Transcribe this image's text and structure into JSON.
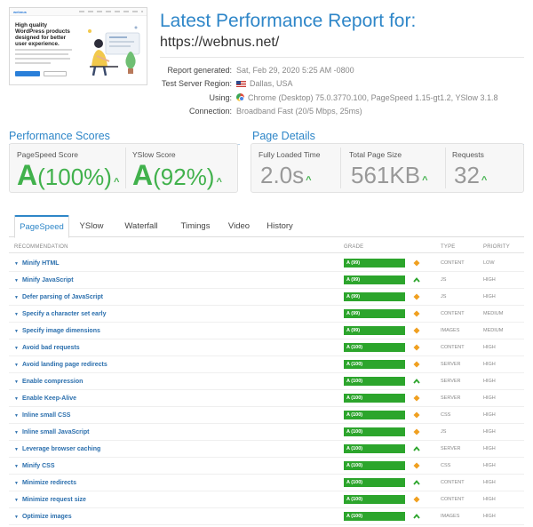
{
  "header": {
    "thumbnail": {
      "logo": "webnus",
      "headline": "High quality WordPress products designed for better user experience."
    },
    "title": "Latest Performance Report for:",
    "url": "https://webnus.net/",
    "info": [
      {
        "label": "Report generated:",
        "value": "Sat, Feb 29, 2020 5:25 AM -0800"
      },
      {
        "label": "Test Server Region:",
        "value": "Dallas, USA",
        "icon": "us-flag-icon"
      },
      {
        "label": "Using:",
        "value": "Chrome (Desktop) 75.0.3770.100, PageSpeed 1.15-gt1.2, YSlow 3.1.8",
        "icon": "chrome-icon"
      },
      {
        "label": "Connection:",
        "value": "Broadband Fast (20/5 Mbps, 25ms)"
      }
    ]
  },
  "performance_scores": {
    "title": "Performance Scores",
    "pagespeed": {
      "label": "PageSpeed Score",
      "grade": "A",
      "percent": "(100%)"
    },
    "yslow": {
      "label": "YSlow Score",
      "grade": "A",
      "percent": "(92%)"
    }
  },
  "page_details": {
    "title": "Page Details",
    "fully_loaded": {
      "label": "Fully Loaded Time",
      "value": "2.0s"
    },
    "page_size": {
      "label": "Total Page Size",
      "value": "561KB"
    },
    "requests": {
      "label": "Requests",
      "value": "32"
    }
  },
  "tabs": [
    "PageSpeed",
    "YSlow",
    "Waterfall",
    "Timings",
    "Video",
    "History"
  ],
  "active_tab": "PageSpeed",
  "table": {
    "headers": {
      "recommendation": "RECOMMENDATION",
      "grade": "GRADE",
      "type": "TYPE",
      "priority": "PRIORITY"
    },
    "rows": [
      {
        "name": "Minify HTML",
        "grade": "A (99)",
        "score": 99,
        "trend": "diamond",
        "type": "CONTENT",
        "priority": "LOW"
      },
      {
        "name": "Minify JavaScript",
        "grade": "A (99)",
        "score": 99,
        "trend": "up",
        "type": "JS",
        "priority": "HIGH"
      },
      {
        "name": "Defer parsing of JavaScript",
        "grade": "A (99)",
        "score": 99,
        "trend": "diamond",
        "type": "JS",
        "priority": "HIGH"
      },
      {
        "name": "Specify a character set early",
        "grade": "A (99)",
        "score": 99,
        "trend": "diamond",
        "type": "CONTENT",
        "priority": "MEDIUM"
      },
      {
        "name": "Specify image dimensions",
        "grade": "A (99)",
        "score": 99,
        "trend": "diamond",
        "type": "IMAGES",
        "priority": "MEDIUM"
      },
      {
        "name": "Avoid bad requests",
        "grade": "A (100)",
        "score": 100,
        "trend": "diamond",
        "type": "CONTENT",
        "priority": "HIGH"
      },
      {
        "name": "Avoid landing page redirects",
        "grade": "A (100)",
        "score": 100,
        "trend": "diamond",
        "type": "SERVER",
        "priority": "HIGH"
      },
      {
        "name": "Enable compression",
        "grade": "A (100)",
        "score": 100,
        "trend": "up",
        "type": "SERVER",
        "priority": "HIGH"
      },
      {
        "name": "Enable Keep-Alive",
        "grade": "A (100)",
        "score": 100,
        "trend": "diamond",
        "type": "SERVER",
        "priority": "HIGH"
      },
      {
        "name": "Inline small CSS",
        "grade": "A (100)",
        "score": 100,
        "trend": "diamond",
        "type": "CSS",
        "priority": "HIGH"
      },
      {
        "name": "Inline small JavaScript",
        "grade": "A (100)",
        "score": 100,
        "trend": "diamond",
        "type": "JS",
        "priority": "HIGH"
      },
      {
        "name": "Leverage browser caching",
        "grade": "A (100)",
        "score": 100,
        "trend": "up",
        "type": "SERVER",
        "priority": "HIGH"
      },
      {
        "name": "Minify CSS",
        "grade": "A (100)",
        "score": 100,
        "trend": "diamond",
        "type": "CSS",
        "priority": "HIGH"
      },
      {
        "name": "Minimize redirects",
        "grade": "A (100)",
        "score": 100,
        "trend": "up",
        "type": "CONTENT",
        "priority": "HIGH"
      },
      {
        "name": "Minimize request size",
        "grade": "A (100)",
        "score": 100,
        "trend": "diamond",
        "type": "CONTENT",
        "priority": "HIGH"
      },
      {
        "name": "Optimize images",
        "grade": "A (100)",
        "score": 100,
        "trend": "up",
        "type": "IMAGES",
        "priority": "HIGH"
      }
    ]
  },
  "colors": {
    "accent": "#2e86c8",
    "grade_green": "#2ca52c",
    "trend_orange": "#f0a020"
  }
}
